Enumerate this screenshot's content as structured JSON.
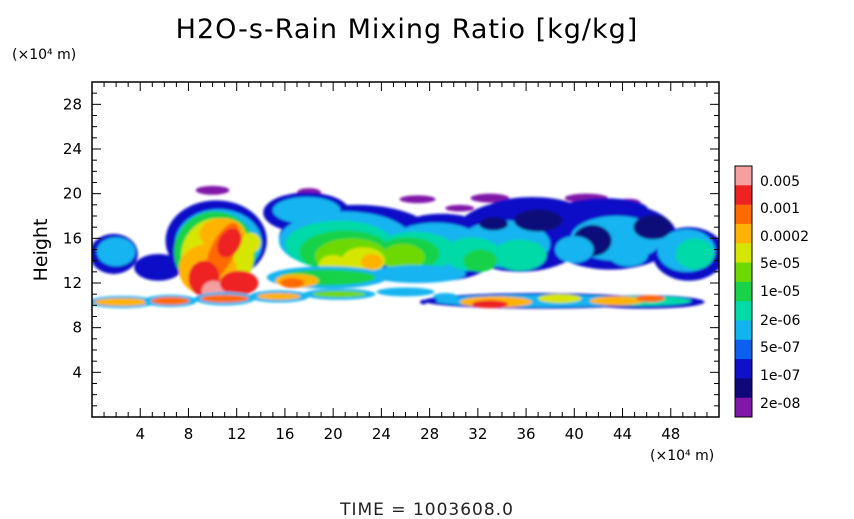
{
  "chart_data": {
    "type": "heatmap",
    "title": "H2O-s-Rain Mixing Ratio [kg/kg]",
    "ylabel": "Height",
    "xlabel": "",
    "x_unit": "(×10⁴ m)",
    "y_unit": "(×10⁴ m)",
    "xlim": [
      0,
      52
    ],
    "ylim": [
      0,
      30
    ],
    "x_ticks": [
      4,
      8,
      12,
      16,
      20,
      24,
      28,
      32,
      36,
      40,
      44,
      48
    ],
    "y_ticks": [
      4,
      8,
      12,
      16,
      20,
      24,
      28
    ],
    "grid": false,
    "legend_position": "right",
    "colorbar": {
      "levels": [
        "0.005",
        "0.001",
        "0.0002",
        "5e-05",
        "1e-05",
        "2e-06",
        "5e-07",
        "1e-07",
        "2e-08"
      ],
      "colors": [
        "#f4a0a0",
        "#ee2222",
        "#ff6a00",
        "#ffb300",
        "#d6e600",
        "#6ed900",
        "#19d24a",
        "#00d9a8",
        "#12b4f0",
        "#0d5ff0",
        "#1010c8",
        "#10087a",
        "#7f18a8"
      ]
    },
    "regions": [
      {
        "x": [
          9,
          13
        ],
        "y": [
          10,
          18
        ],
        "level": "0.001"
      },
      {
        "x": [
          0,
          52
        ],
        "y": [
          9.5,
          11
        ],
        "level": "5e-07"
      },
      {
        "x": [
          30,
          46
        ],
        "y": [
          9.5,
          11
        ],
        "level": "0.0002"
      },
      {
        "x": [
          14,
          52
        ],
        "y": [
          12,
          20
        ],
        "level": "5e-07"
      },
      {
        "x": [
          20,
          26
        ],
        "y": [
          12,
          18
        ],
        "level": "5e-05"
      },
      {
        "x": [
          35,
          48
        ],
        "y": [
          13,
          19
        ],
        "level": "1e-07"
      }
    ]
  },
  "footer": {
    "time_text": "TIME = 1003608.0"
  }
}
